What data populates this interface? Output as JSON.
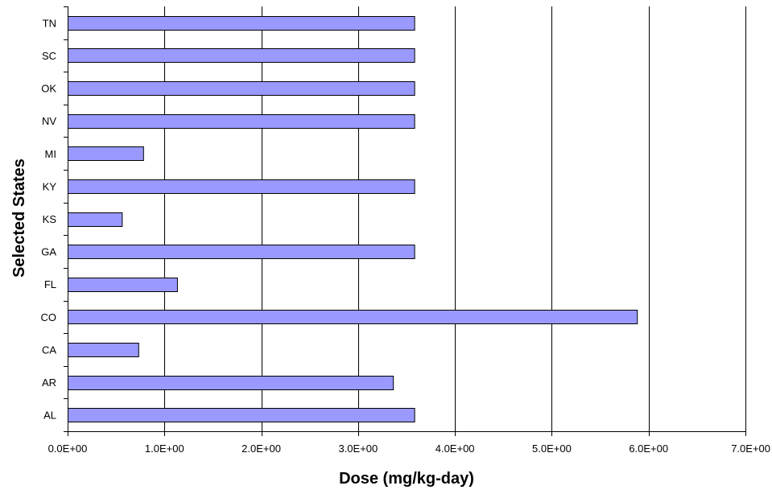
{
  "colors": {
    "bar_fill": "#9999ff",
    "bar_stroke": "#000000",
    "grid": "#000000",
    "axis": "#000000"
  },
  "chart_data": {
    "type": "bar",
    "orientation": "horizontal",
    "title": "",
    "xlabel": "Dose (mg/kg-day)",
    "ylabel": "Selected States",
    "categories": [
      "TN",
      "SC",
      "OK",
      "NV",
      "MI",
      "KY",
      "KS",
      "GA",
      "FL",
      "CO",
      "CA",
      "AR",
      "AL"
    ],
    "values": [
      3.58,
      3.58,
      3.58,
      3.58,
      0.78,
      3.58,
      0.56,
      3.58,
      1.13,
      5.88,
      0.73,
      3.36,
      3.58
    ],
    "xlim": [
      0,
      7
    ],
    "x_ticks": [
      0,
      1,
      2,
      3,
      4,
      5,
      6,
      7
    ],
    "x_tick_labels": [
      "0.0E+00",
      "1.0E+00",
      "2.0E+00",
      "3.0E+00",
      "4.0E+00",
      "5.0E+00",
      "6.0E+00",
      "7.0E+00"
    ],
    "grid": "vertical major gridlines",
    "legend": "none"
  }
}
